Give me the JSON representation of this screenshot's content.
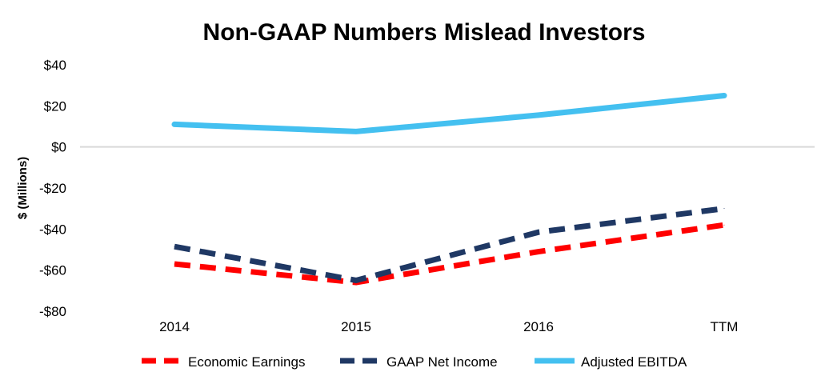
{
  "chart_data": {
    "type": "line",
    "title": "Non-GAAP Numbers Mislead Investors",
    "ylabel": "$ (Millions)",
    "xlabel": "",
    "categories": [
      "2014",
      "2015",
      "2016",
      "TTM"
    ],
    "ylim": [
      -80,
      40
    ],
    "yticks": [
      40,
      20,
      0,
      -20,
      -40,
      -60,
      -80
    ],
    "ytick_labels": [
      "$40",
      "$20",
      "$0",
      "-$20",
      "-$40",
      "-$60",
      "-$80"
    ],
    "grid": false,
    "legend_position": "bottom",
    "series": [
      {
        "name": "Economic Earnings",
        "values": [
          -57,
          -66,
          -51,
          -38
        ],
        "color": "#ff0000",
        "style": "dashed"
      },
      {
        "name": "GAAP Net Income",
        "values": [
          -48.5,
          -65,
          -41.5,
          -30
        ],
        "color": "#1f3864",
        "style": "dashed"
      },
      {
        "name": "Adjusted EBITDA",
        "values": [
          11,
          7.5,
          15.5,
          25
        ],
        "color": "#44c0f0",
        "style": "solid"
      }
    ]
  }
}
